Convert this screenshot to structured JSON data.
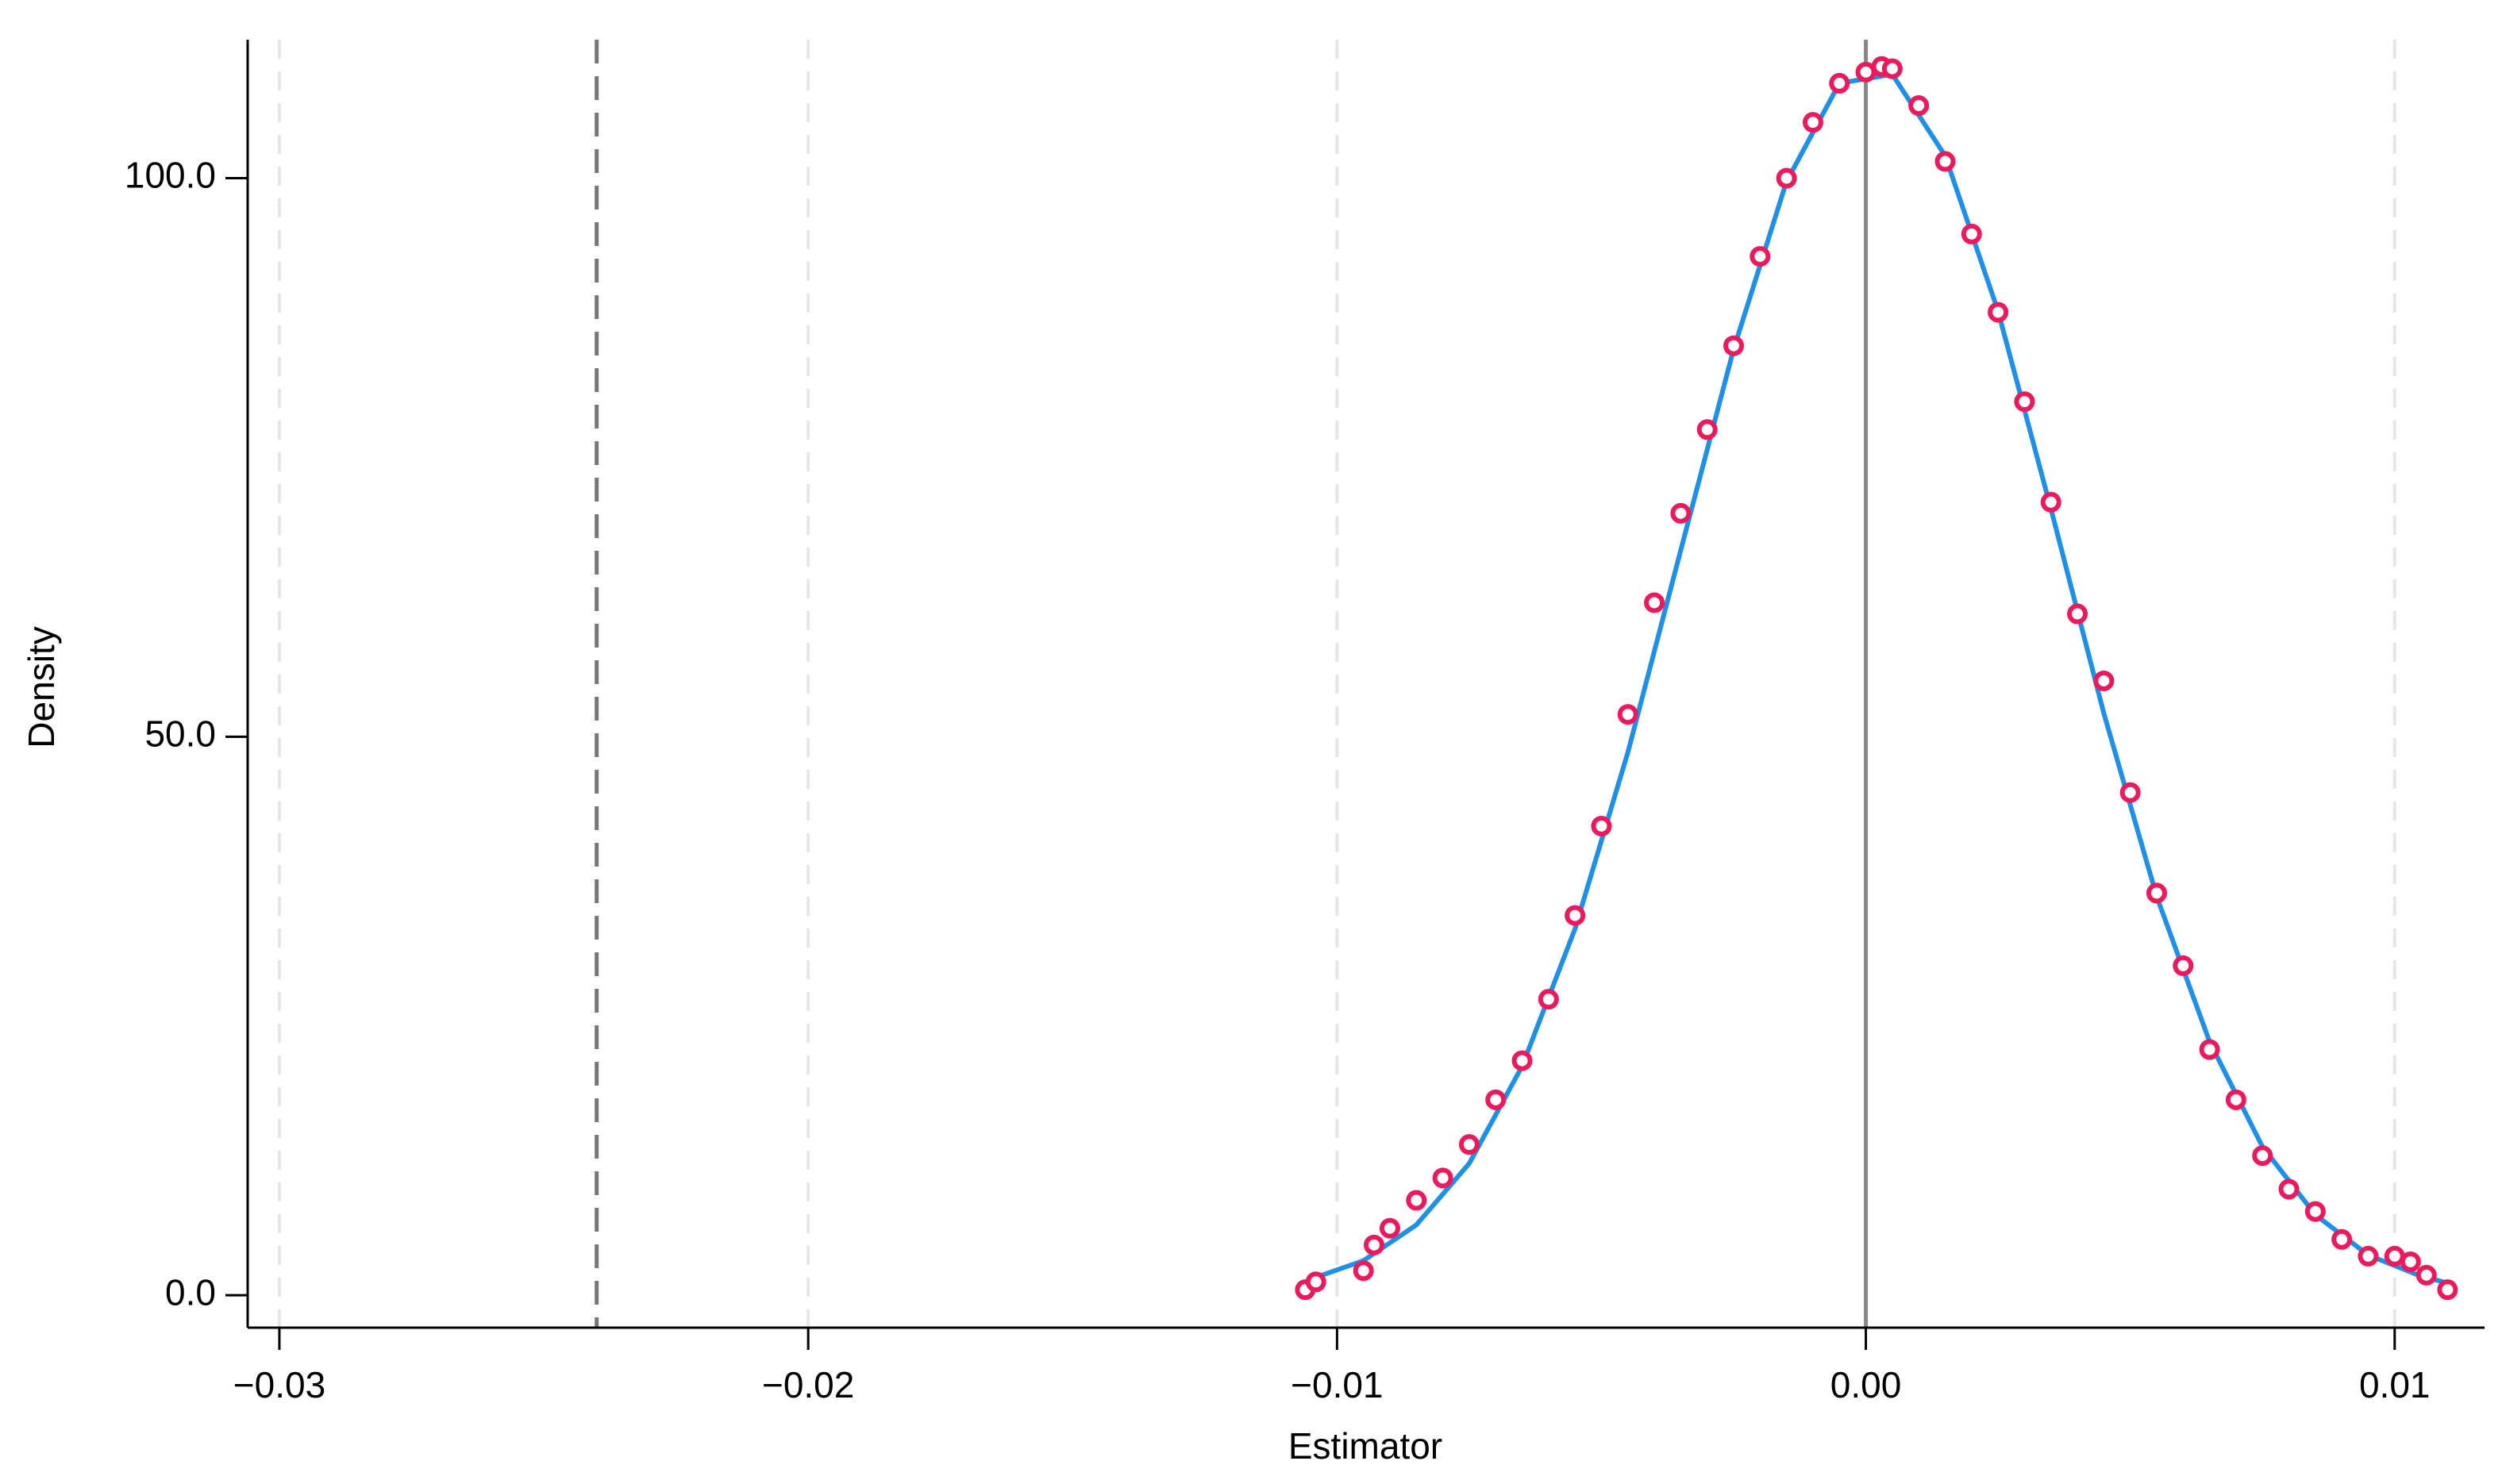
{
  "chart_data": {
    "type": "density",
    "x_label": "Estimator",
    "y_label": "Density",
    "xlim": [
      -0.0306,
      0.0117
    ],
    "ylim": [
      -2.9,
      112.4
    ],
    "xticks": [
      {
        "value": -0.03,
        "label": "−0.03"
      },
      {
        "value": -0.02,
        "label": "−0.02"
      },
      {
        "value": -0.01,
        "label": "−0.01"
      },
      {
        "value": 0,
        "label": "0.00"
      },
      {
        "value": 0.01,
        "label": "0.01"
      }
    ],
    "yticks": [
      {
        "value": 0,
        "label": "0.0"
      },
      {
        "value": 50,
        "label": "50.0"
      },
      {
        "value": 100,
        "label": "100.0"
      }
    ],
    "grid": "x",
    "reference_lines": [
      {
        "x": -0.024,
        "style": "dashed",
        "color": "#777777"
      },
      {
        "x": 0,
        "style": "solid",
        "color": "#888888"
      }
    ],
    "series": [
      {
        "type": "line",
        "color": "#1f8fe8",
        "x": [
          -0.0105,
          -0.0095,
          -0.0085,
          -0.0075,
          -0.0065,
          -0.0055,
          -0.0045,
          -0.0035,
          -0.0025,
          -0.0015,
          -0.0005,
          0.0005,
          0.0015,
          0.0025,
          0.0035,
          0.0045,
          0.0055,
          0.0065,
          0.0075,
          0.0085,
          0.0095,
          0.0105,
          0.011
        ],
        "values": [
          1.44,
          3.1,
          6.3,
          11.8,
          20.5,
          32.8,
          48.6,
          66.7,
          84.7,
          99.7,
          108.5,
          109.3,
          102.0,
          88.1,
          70.4,
          52.1,
          35.7,
          22.7,
          13.3,
          7.2,
          3.6,
          1.7,
          1.1
        ]
      },
      {
        "type": "scatter",
        "color": "#ea1a5c",
        "x": [
          -0.0106,
          -0.0104,
          -0.0095,
          -0.0093,
          -0.009,
          -0.0085,
          -0.008,
          -0.0075,
          -0.007,
          -0.0065,
          -0.006,
          -0.0055,
          -0.005,
          -0.0045,
          -0.004,
          -0.0035,
          -0.003,
          -0.0025,
          -0.002,
          -0.0015,
          -0.001,
          -0.0005,
          0.0,
          0.0003,
          0.0005,
          0.001,
          0.0015,
          0.002,
          0.0025,
          0.003,
          0.0035,
          0.004,
          0.0045,
          0.005,
          0.0055,
          0.006,
          0.0065,
          0.007,
          0.0075,
          0.008,
          0.0085,
          0.009,
          0.0095,
          0.01,
          0.0103,
          0.0106,
          0.011
        ],
        "values": [
          0.5,
          1.2,
          2.2,
          4.5,
          6.0,
          8.5,
          10.5,
          13.5,
          17.5,
          21.0,
          26.5,
          34.0,
          42.0,
          52.0,
          62.0,
          70.0,
          77.5,
          85.0,
          93.0,
          100.0,
          105.0,
          108.5,
          109.5,
          110.0,
          109.8,
          106.5,
          101.5,
          95.0,
          88.0,
          80.0,
          71.0,
          61.0,
          55.0,
          45.0,
          36.0,
          29.5,
          22.0,
          17.5,
          12.5,
          9.5,
          7.5,
          5.0,
          3.5,
          3.5,
          3.0,
          1.8,
          0.5
        ]
      }
    ]
  }
}
